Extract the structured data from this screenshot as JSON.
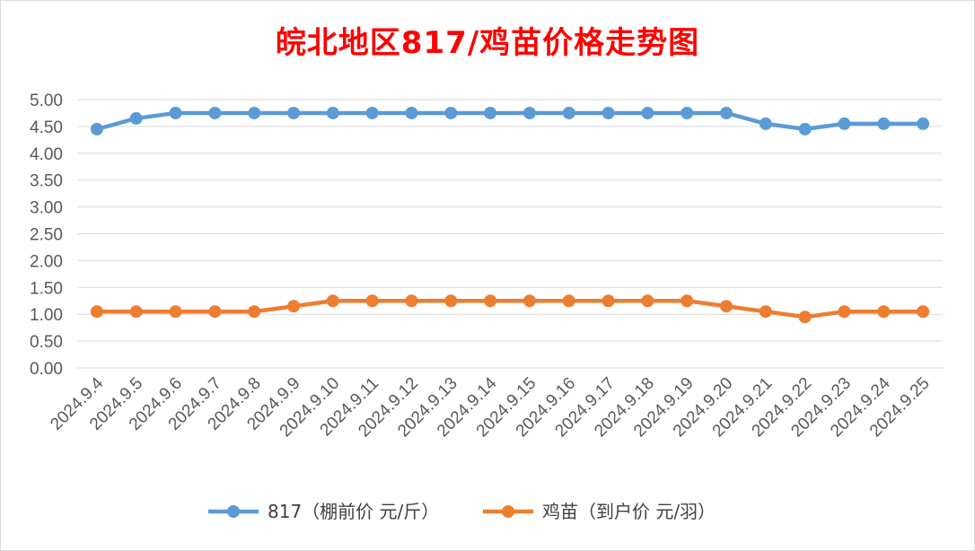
{
  "chart_data": {
    "type": "line",
    "title": "皖北地区817/鸡苗价格走势图",
    "categories": [
      "2024.9.4",
      "2024.9.5",
      "2024.9.6",
      "2024.9.7",
      "2024.9.8",
      "2024.9.9",
      "2024.9.10",
      "2024.9.11",
      "2024.9.12",
      "2024.9.13",
      "2024.9.14",
      "2024.9.15",
      "2024.9.16",
      "2024.9.17",
      "2024.9.18",
      "2024.9.19",
      "2024.9.20",
      "2024.9.21",
      "2024.9.22",
      "2024.9.23",
      "2024.9.24",
      "2024.9.25"
    ],
    "series": [
      {
        "name": "817（棚前价 元/斤）",
        "color": "#5b9bd5",
        "values": [
          4.45,
          4.65,
          4.75,
          4.75,
          4.75,
          4.75,
          4.75,
          4.75,
          4.75,
          4.75,
          4.75,
          4.75,
          4.75,
          4.75,
          4.75,
          4.75,
          4.75,
          4.55,
          4.45,
          4.55,
          4.55,
          4.55
        ]
      },
      {
        "name": "鸡苗（到户价 元/羽）",
        "color": "#ed7d31",
        "values": [
          1.05,
          1.05,
          1.05,
          1.05,
          1.05,
          1.15,
          1.25,
          1.25,
          1.25,
          1.25,
          1.25,
          1.25,
          1.25,
          1.25,
          1.25,
          1.25,
          1.15,
          1.05,
          0.95,
          1.05,
          1.05,
          1.05
        ]
      }
    ],
    "ylim": [
      0,
      5
    ],
    "yticks": [
      "0.00",
      "0.50",
      "1.00",
      "1.50",
      "2.00",
      "2.50",
      "3.00",
      "3.50",
      "4.00",
      "4.50",
      "5.00"
    ],
    "grid": true,
    "legend_position": "bottom"
  }
}
